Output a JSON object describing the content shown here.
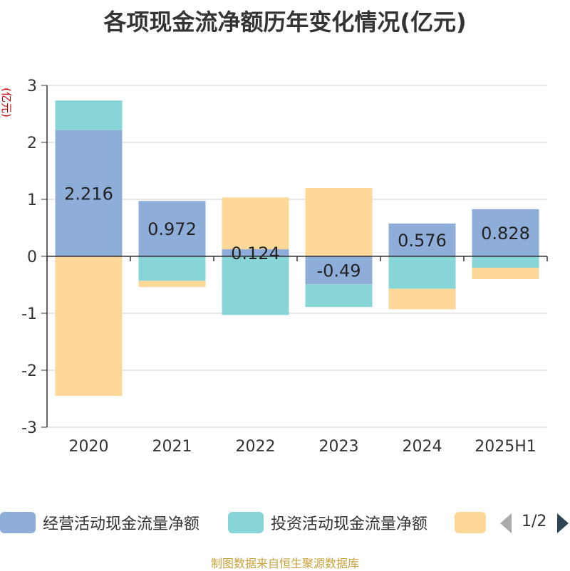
{
  "title": "各项现金流净额历年变化情况(亿元)",
  "footer": "制图数据来自恒生聚源数据库",
  "pager": {
    "text": "1/2"
  },
  "colors": {
    "operating": "#8eadd9",
    "investing": "#88d5d7",
    "financing": "#fdd898"
  },
  "legend": [
    {
      "label": "经营活动现金流量净额",
      "color": "#8eadd9"
    },
    {
      "label": "投资活动现金流量净额",
      "color": "#88d5d7"
    },
    {
      "label": "",
      "color": "#fdd898"
    }
  ],
  "chart_data": {
    "type": "bar",
    "stacked": true,
    "ylabel": "(亿元)",
    "ylim": [
      -3,
      3
    ],
    "yticks": [
      3,
      2,
      1,
      0,
      -1,
      -2,
      -3
    ],
    "grid": true,
    "legend_position": "bottom",
    "categories": [
      "2020",
      "2021",
      "2022",
      "2023",
      "2024",
      "2025H1"
    ],
    "series": [
      {
        "name": "经营活动现金流量净额",
        "values": [
          2.216,
          0.972,
          0.124,
          -0.49,
          0.576,
          0.828
        ],
        "labels": [
          "2.216",
          "0.972",
          "0.124",
          "-0.49",
          "0.576",
          "0.828"
        ]
      },
      {
        "name": "投资活动现金流量净额",
        "values": [
          0.52,
          -0.43,
          -1.03,
          -0.4,
          -0.57,
          -0.2
        ]
      },
      {
        "values": [
          -2.45,
          -0.11,
          0.91,
          1.2,
          -0.36,
          -0.2
        ]
      }
    ]
  }
}
